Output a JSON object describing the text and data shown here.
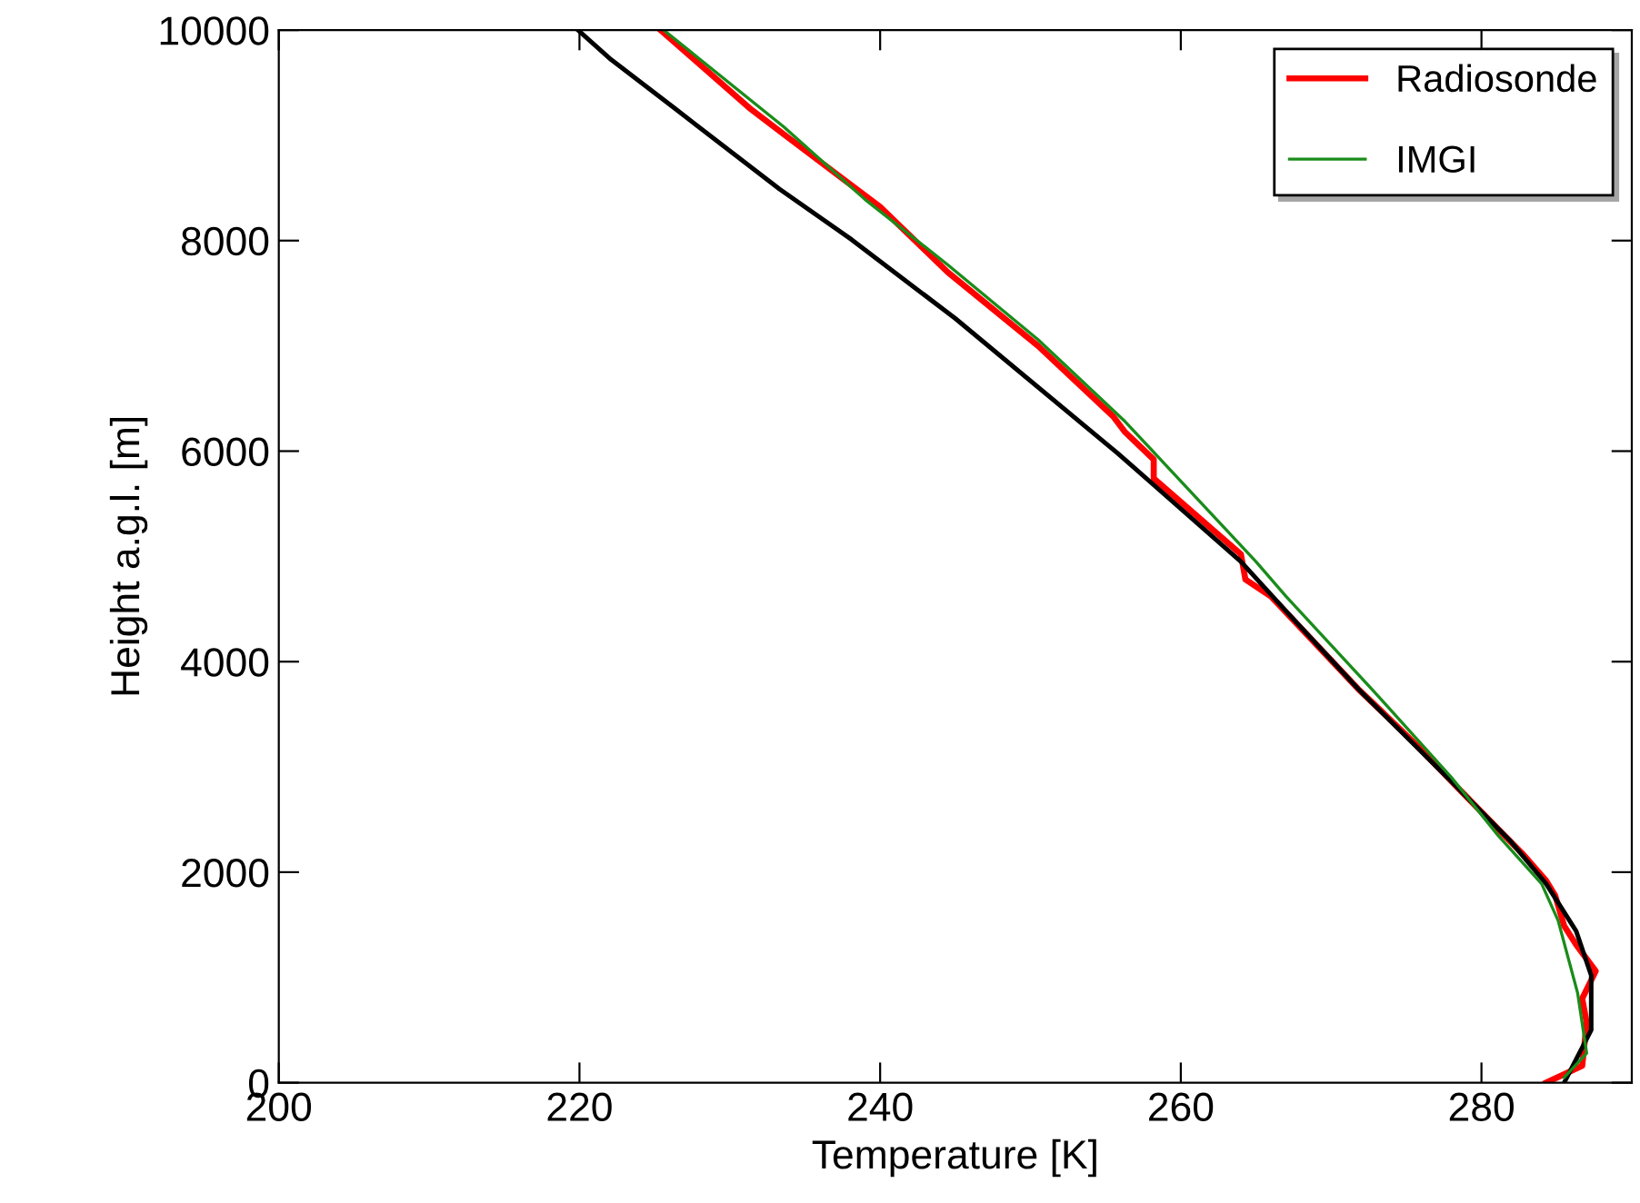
{
  "chart_data": {
    "type": "line",
    "xlabel": "Temperature [K]",
    "ylabel": "Height a.g.l. [m]",
    "xlim": [
      200,
      290
    ],
    "xticks": [
      200,
      220,
      240,
      260,
      280
    ],
    "ylim": [
      0,
      10000
    ],
    "yticks": [
      0,
      2000,
      4000,
      6000,
      8000,
      10000
    ],
    "grid": false,
    "legend": "top right",
    "marker": "none",
    "line_style": "solid",
    "series": [
      {
        "name": "Radiosonde",
        "color": "#ff0000",
        "x": [
          284.3,
          286.7,
          287.0,
          286.7,
          287.6,
          286.3,
          285.5,
          284.9,
          284.3,
          282.7,
          281.1,
          278.3,
          275.6,
          271.8,
          266.0,
          264.3,
          264.0,
          258.2,
          258.2,
          256.3,
          255.5,
          250.5,
          244.5,
          240.0,
          233.6,
          231.3,
          225.4
        ],
        "values": [
          0,
          160,
          570,
          800,
          1060,
          1310,
          1490,
          1780,
          1920,
          2180,
          2410,
          2820,
          3220,
          3740,
          4620,
          4780,
          5020,
          5740,
          5920,
          6180,
          6330,
          7000,
          7700,
          8320,
          9010,
          9260,
          10000
        ]
      },
      {
        "color": "#000000",
        "x": [
          285.5,
          287.3,
          287.3,
          286.3,
          284.3,
          281.9,
          278.3,
          271.8,
          267.0,
          264.0,
          255.8,
          245.0,
          238.1,
          233.3,
          226.3,
          222.1,
          219.9
        ],
        "values": [
          0,
          500,
          1020,
          1440,
          1890,
          2300,
          2820,
          3740,
          4480,
          4950,
          5980,
          7260,
          8010,
          8490,
          9260,
          9720,
          10000
        ]
      },
      {
        "name": "IMGI",
        "color": "#1a8c1a",
        "x": [
          285.5,
          287.0,
          286.4,
          285.1,
          284.0,
          281.1,
          278.0,
          272.7,
          267.0,
          265.0,
          256.3,
          250.5,
          244.5,
          239.0,
          233.6,
          225.6
        ],
        "values": [
          50,
          280,
          850,
          1540,
          1890,
          2350,
          2900,
          3740,
          4620,
          4950,
          6280,
          7060,
          7770,
          8390,
          9080,
          10000
        ]
      }
    ]
  }
}
